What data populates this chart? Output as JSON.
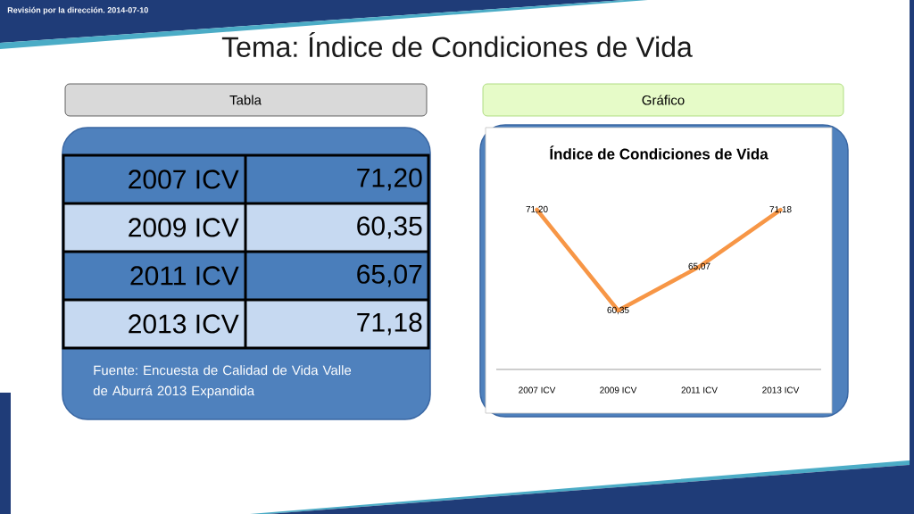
{
  "chart_data": {
    "type": "line",
    "title": "Índice de Condiciones de Vida",
    "categories": [
      "2007 ICV",
      "2009 ICV",
      "2011 ICV",
      "2013 ICV"
    ],
    "values": [
      71.2,
      60.35,
      65.07,
      71.18
    ],
    "value_labels": [
      "71,20",
      "60,35",
      "65,07",
      "71,18"
    ],
    "color": "#f79646",
    "tick_labels": "x",
    "line_style": "solid",
    "annotations": [
      "Revisión por la dirección. 2014-07-10",
      "Tema: Índice de Condiciones de Vida",
      "Tabla",
      "Gráfico",
      "Fuente: Encuesta de Calidad de Vida Valle de Aburrá 2013 Expandida"
    ]
  }
}
